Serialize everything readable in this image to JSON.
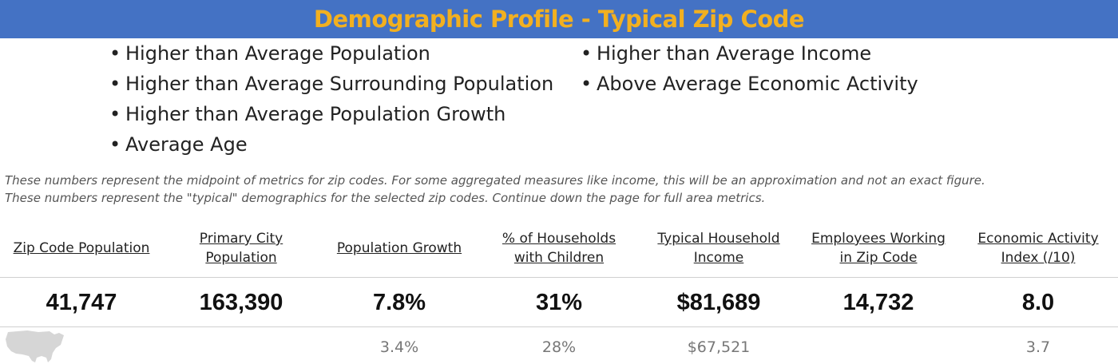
{
  "title": "Demographic Profile - Typical Zip Code",
  "colors": {
    "title_bar_bg": "#4472c4",
    "title_text": "#f2b020"
  },
  "bullets_left": [
    "Higher than Average Population",
    "Higher than Average Surrounding Population",
    "Higher than Average Population Growth",
    "Average Age"
  ],
  "bullets_right": [
    "Higher than Average Income",
    "Above Average Economic Activity"
  ],
  "bullet_glyph": "•",
  "notes": [
    "These numbers represent the midpoint of metrics for zip codes. For some aggregated measures like income, this will be an approximation and not an exact figure.",
    "These numbers represent the \"typical\" demographics for the selected zip codes. Continue down the page for full area metrics."
  ],
  "metrics": [
    {
      "header": [
        "Zip Code Population"
      ],
      "value": "41,747",
      "comparison": ""
    },
    {
      "header": [
        "Primary City",
        "Population"
      ],
      "value": "163,390",
      "comparison": ""
    },
    {
      "header": [
        "Population Growth"
      ],
      "value": "7.8%",
      "comparison": "3.4%"
    },
    {
      "header": [
        "% of Households",
        "with Children"
      ],
      "value": "31%",
      "comparison": "28%"
    },
    {
      "header": [
        "Typical Household",
        "Income"
      ],
      "value": "$81,689",
      "comparison": "$67,521"
    },
    {
      "header": [
        "Employees Working",
        "in Zip Code"
      ],
      "value": "14,732",
      "comparison": ""
    },
    {
      "header": [
        "Economic Activity",
        "Index (/10)"
      ],
      "value": "8.0",
      "comparison": "3.7"
    }
  ],
  "comparison_icon": "usa-map-icon"
}
